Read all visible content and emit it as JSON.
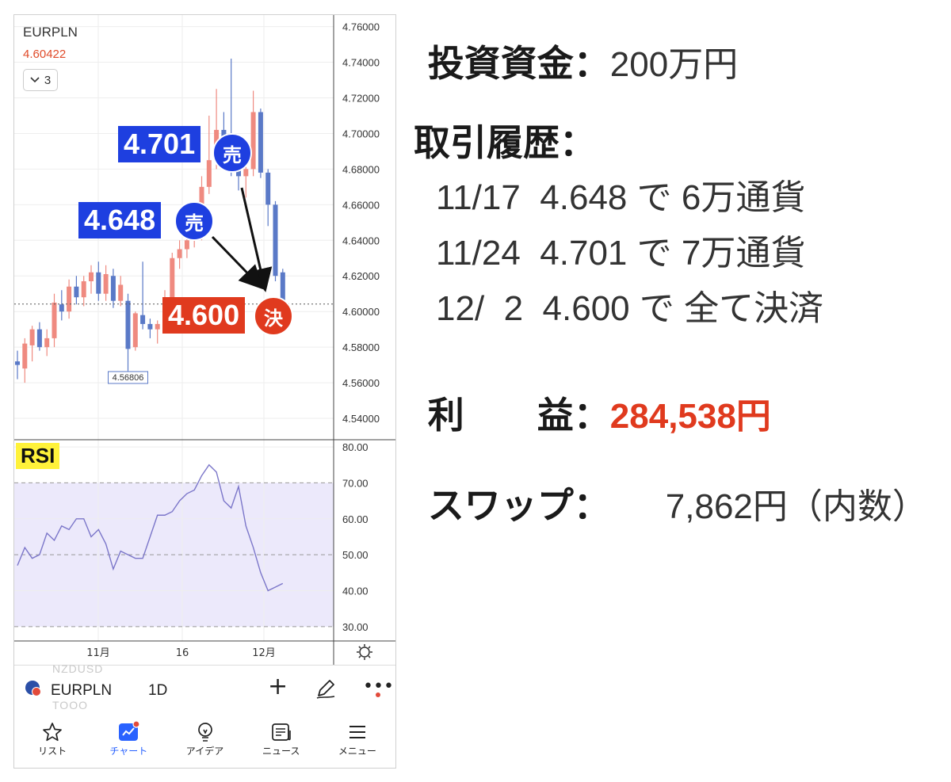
{
  "chart_header": {
    "symbol": "EURPLN",
    "last_price": "4.60422",
    "indicator_count": "3"
  },
  "price_axis": [
    "4.76000",
    "4.74000",
    "4.72000",
    "4.70000",
    "4.68000",
    "4.66000",
    "4.64000",
    "4.62000",
    "4.60000",
    "4.58000",
    "4.56000",
    "4.54000"
  ],
  "rsi_axis": [
    "80.00",
    "70.00",
    "60.00",
    "50.00",
    "40.00",
    "30.00"
  ],
  "time_axis": [
    "11月",
    "16",
    "12月"
  ],
  "low_marker": "4.56806",
  "rsi_label": "RSI",
  "annotations": {
    "sell1_price": "4.701",
    "sell1_tag": "売",
    "sell2_price": "4.648",
    "sell2_tag": "売",
    "close_price": "4.600",
    "close_tag": "決"
  },
  "colors": {
    "up": "#ef8a80",
    "down": "#5a79c7",
    "sell_badge": "#1e3fe0",
    "close_badge": "#e03a1e",
    "rsi_line": "#7b76c9",
    "rsi_band": "#ece9fb",
    "active_nav": "#2962ff"
  },
  "candles": [
    {
      "o": 4.572,
      "h": 4.578,
      "l": 4.562,
      "c": 4.57
    },
    {
      "o": 4.568,
      "h": 4.585,
      "l": 4.56,
      "c": 4.582
    },
    {
      "o": 4.581,
      "h": 4.592,
      "l": 4.572,
      "c": 4.59
    },
    {
      "o": 4.59,
      "h": 4.594,
      "l": 4.578,
      "c": 4.58
    },
    {
      "o": 4.58,
      "h": 4.59,
      "l": 4.575,
      "c": 4.585
    },
    {
      "o": 4.585,
      "h": 4.61,
      "l": 4.58,
      "c": 4.605
    },
    {
      "o": 4.604,
      "h": 4.612,
      "l": 4.595,
      "c": 4.6
    },
    {
      "o": 4.6,
      "h": 4.618,
      "l": 4.596,
      "c": 4.614
    },
    {
      "o": 4.614,
      "h": 4.62,
      "l": 4.604,
      "c": 4.608
    },
    {
      "o": 4.608,
      "h": 4.62,
      "l": 4.603,
      "c": 4.617
    },
    {
      "o": 4.617,
      "h": 4.626,
      "l": 4.61,
      "c": 4.622
    },
    {
      "o": 4.622,
      "h": 4.628,
      "l": 4.606,
      "c": 4.61
    },
    {
      "o": 4.61,
      "h": 4.626,
      "l": 4.606,
      "c": 4.621
    },
    {
      "o": 4.62,
      "h": 4.624,
      "l": 4.602,
      "c": 4.606
    },
    {
      "o": 4.606,
      "h": 4.62,
      "l": 4.603,
      "c": 4.615
    },
    {
      "o": 4.606,
      "h": 4.61,
      "l": 4.567,
      "c": 4.579
    },
    {
      "o": 4.58,
      "h": 4.6,
      "l": 4.578,
      "c": 4.599
    },
    {
      "o": 4.598,
      "h": 4.628,
      "l": 4.59,
      "c": 4.593
    },
    {
      "o": 4.593,
      "h": 4.596,
      "l": 4.585,
      "c": 4.59
    },
    {
      "o": 4.59,
      "h": 4.595,
      "l": 4.582,
      "c": 4.593
    },
    {
      "o": 4.593,
      "h": 4.612,
      "l": 4.59,
      "c": 4.6
    },
    {
      "o": 4.6,
      "h": 4.633,
      "l": 4.595,
      "c": 4.63
    },
    {
      "o": 4.63,
      "h": 4.64,
      "l": 4.624,
      "c": 4.635
    },
    {
      "o": 4.635,
      "h": 4.65,
      "l": 4.63,
      "c": 4.64
    },
    {
      "o": 4.64,
      "h": 4.655,
      "l": 4.636,
      "c": 4.648
    },
    {
      "o": 4.648,
      "h": 4.676,
      "l": 4.64,
      "c": 4.67
    },
    {
      "o": 4.67,
      "h": 4.71,
      "l": 4.666,
      "c": 4.685
    },
    {
      "o": 4.685,
      "h": 4.725,
      "l": 4.68,
      "c": 4.702
    },
    {
      "o": 4.702,
      "h": 4.712,
      "l": 4.683,
      "c": 4.688
    },
    {
      "o": 4.688,
      "h": 4.742,
      "l": 4.676,
      "c": 4.68
    },
    {
      "o": 4.68,
      "h": 4.696,
      "l": 4.668,
      "c": 4.676
    },
    {
      "o": 4.676,
      "h": 4.686,
      "l": 4.664,
      "c": 4.68
    },
    {
      "o": 4.68,
      "h": 4.724,
      "l": 4.676,
      "c": 4.712
    },
    {
      "o": 4.712,
      "h": 4.714,
      "l": 4.675,
      "c": 4.678
    },
    {
      "o": 4.678,
      "h": 4.68,
      "l": 4.648,
      "c": 4.66
    },
    {
      "o": 4.66,
      "h": 4.662,
      "l": 4.617,
      "c": 4.62
    },
    {
      "o": 4.622,
      "h": 4.624,
      "l": 4.588,
      "c": 4.604
    }
  ],
  "rsi_values": [
    47,
    52,
    49,
    50,
    56,
    54,
    58,
    57,
    60,
    60,
    55,
    57,
    53,
    46,
    51,
    50,
    49,
    49,
    55,
    61,
    61,
    62,
    65,
    67,
    68,
    72,
    75,
    73,
    65,
    63,
    69,
    58,
    52,
    45,
    40,
    41,
    42
  ],
  "bottom_toolbar": {
    "ghost_top": "NZDUSD",
    "ghost_bottom": "TOOO",
    "symbol": "EURPLN",
    "timeframe": "1D"
  },
  "nav": [
    {
      "label": "リスト",
      "icon": "star-icon"
    },
    {
      "label": "チャート",
      "icon": "chart-icon"
    },
    {
      "label": "アイデア",
      "icon": "lightbulb-icon"
    },
    {
      "label": "ニュース",
      "icon": "news-icon"
    },
    {
      "label": "メニュー",
      "icon": "menu-icon"
    }
  ],
  "summary": {
    "capital_label": "投資資金：",
    "capital_value": "200万円",
    "history_label": "取引履歴：",
    "history": [
      "11/17  4.648 で 6万通貨",
      "11/24  4.701 で 7万通貨",
      "12/  2  4.600 で 全て決済"
    ],
    "profit_label": "利　　益：",
    "profit_value": "284,538円",
    "swap_label": "スワップ：",
    "swap_value": "7,862円（内数）"
  }
}
